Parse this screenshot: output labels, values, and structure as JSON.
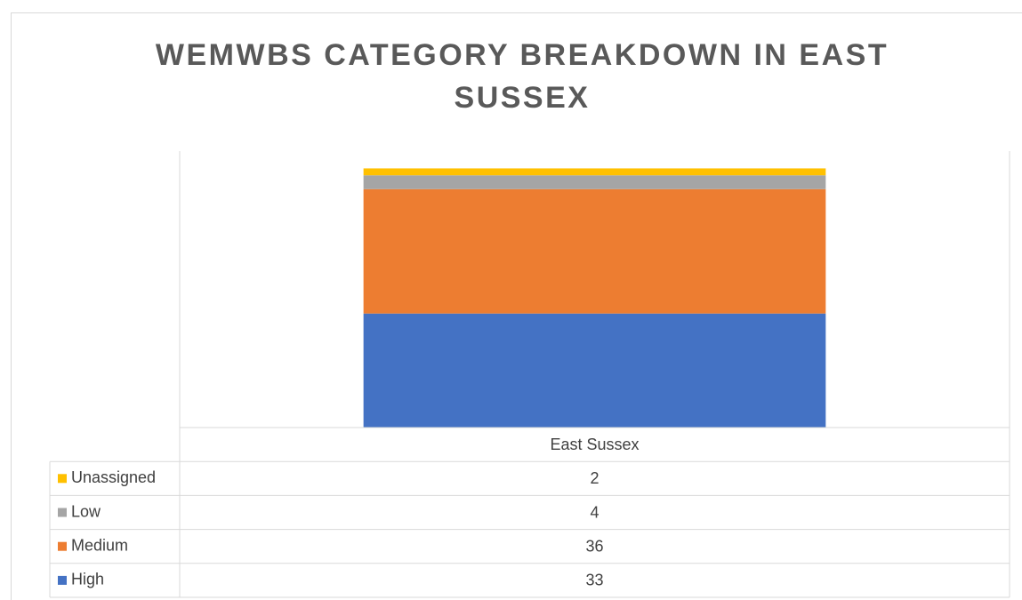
{
  "chart_data": {
    "type": "stacked_bar",
    "title": "WEMWBS CATEGORY BREAKDOWN IN EAST SUSSEX",
    "categories": [
      "East Sussex"
    ],
    "series": [
      {
        "name": "High",
        "color": "#4472c4",
        "values": [
          33
        ]
      },
      {
        "name": "Medium",
        "color": "#ed7d31",
        "values": [
          36
        ]
      },
      {
        "name": "Low",
        "color": "#a5a5a5",
        "values": [
          4
        ]
      },
      {
        "name": "Unassigned",
        "color": "#ffc000",
        "values": [
          2
        ]
      }
    ],
    "ylim": [
      0,
      80
    ],
    "data_table": true
  }
}
